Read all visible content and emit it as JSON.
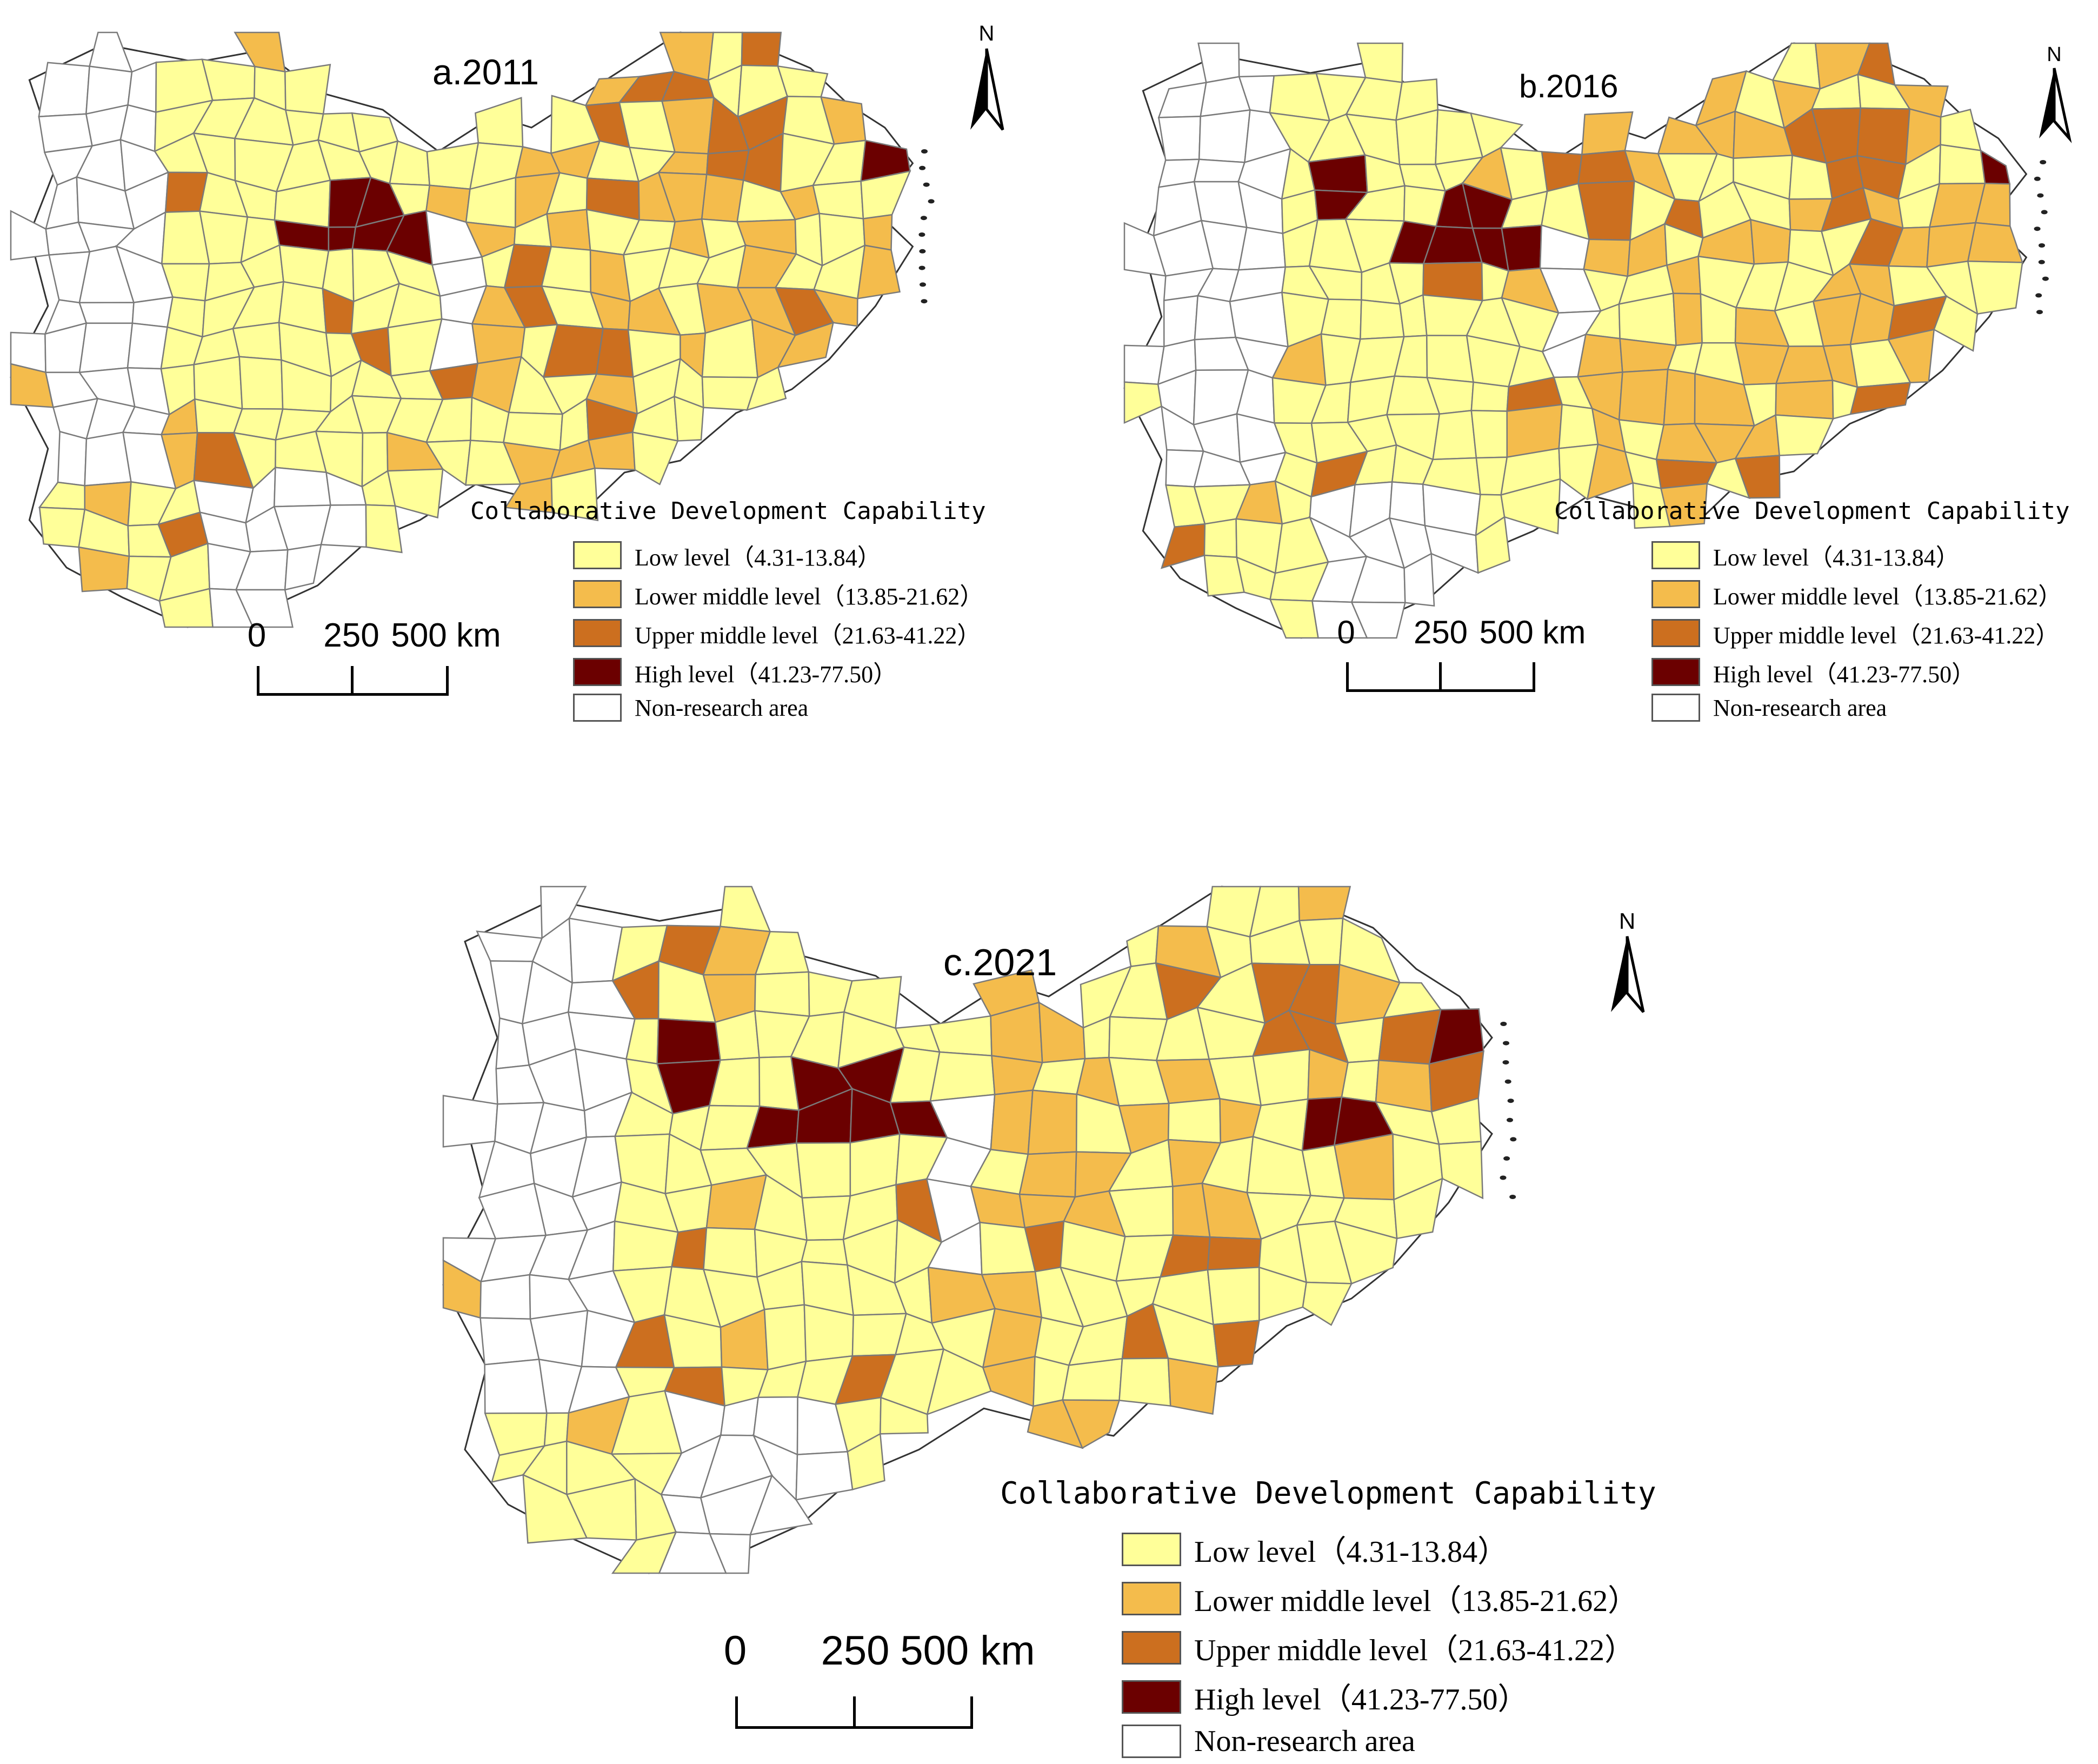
{
  "colors": {
    "low": "#ffff99",
    "lower_middle": "#f4bc4c",
    "upper_middle": "#cc6f1f",
    "high": "#6b0000",
    "non_research": "#ffffff",
    "border": "#7a7a7a"
  },
  "legend": {
    "title": "Collaborative Development Capability",
    "items": [
      {
        "key": "low",
        "label": "Low level（4.31-13.84）"
      },
      {
        "key": "lower_middle",
        "label": "Lower middle level（13.85-21.62）"
      },
      {
        "key": "upper_middle",
        "label": "Upper middle level（21.63-41.22）"
      },
      {
        "key": "high",
        "label": "High level（41.23-77.50）"
      },
      {
        "key": "non_research",
        "label": "Non-research area"
      }
    ]
  },
  "scale": {
    "labels": [
      "0",
      "250",
      "500 km"
    ]
  },
  "north_label": "N",
  "panels": [
    {
      "id": "a",
      "title": "a.2011",
      "west_high_city": false,
      "east_high_city": false
    },
    {
      "id": "b",
      "title": "b.2016",
      "west_high_city": true,
      "east_high_city": false
    },
    {
      "id": "c",
      "title": "c.2021",
      "west_high_city": true,
      "east_high_city": true
    }
  ]
}
